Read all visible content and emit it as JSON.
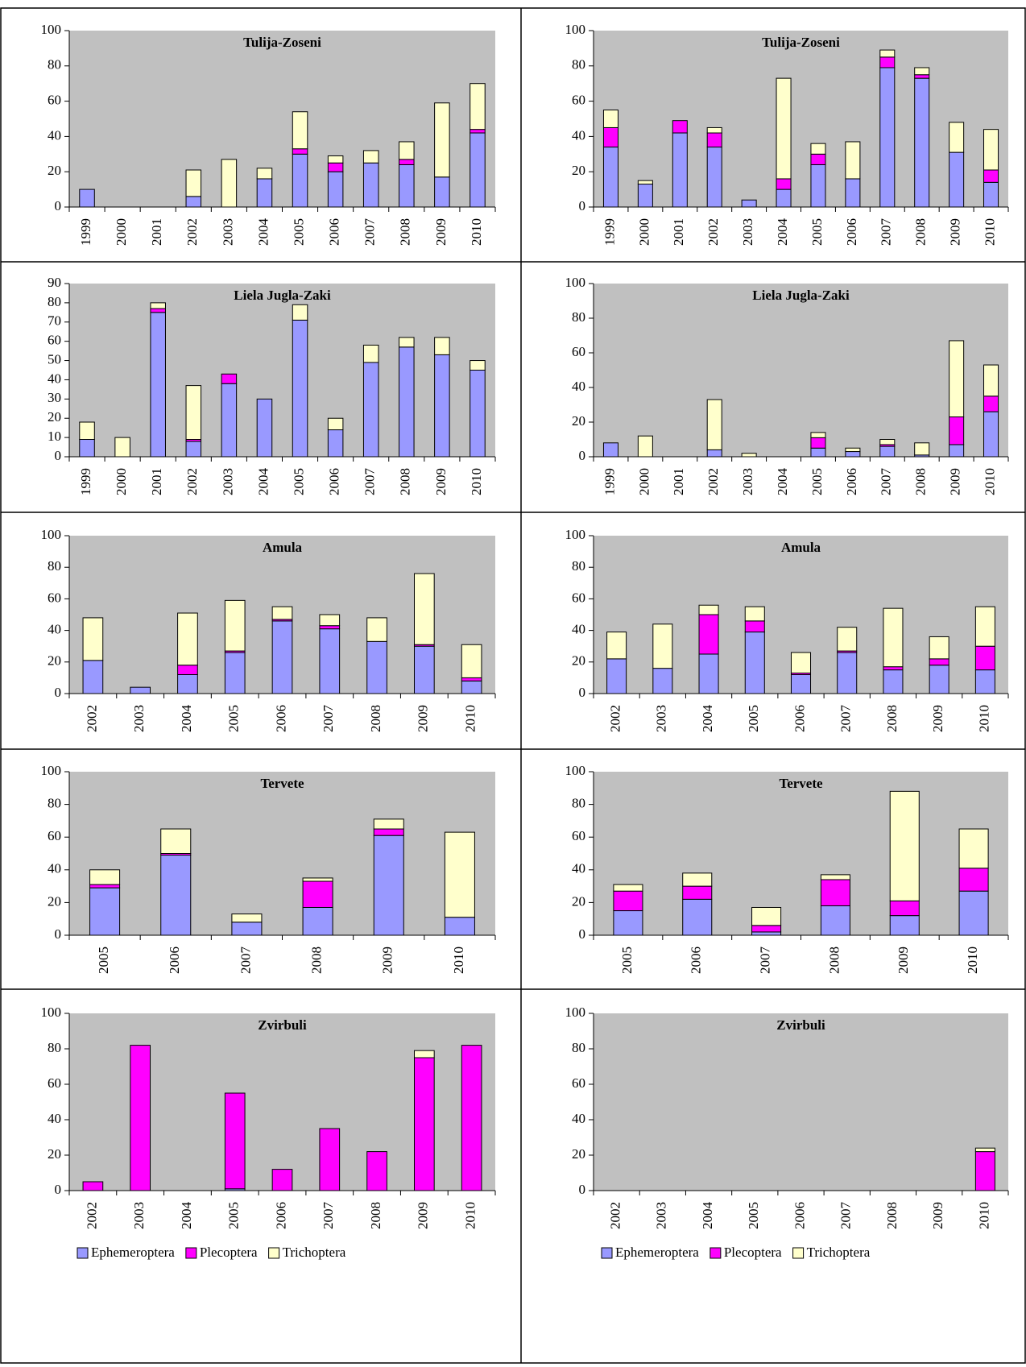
{
  "chart_data": [
    {
      "type": "stacked_bar",
      "title": "Tulija-Zoseni",
      "categories": [
        "1999",
        "2000",
        "2001",
        "2002",
        "2003",
        "2004",
        "2005",
        "2006",
        "2007",
        "2008",
        "2009",
        "2010"
      ],
      "ylim": [
        0,
        100
      ],
      "yticks": [
        0,
        20,
        40,
        60,
        80,
        100
      ],
      "series": [
        {
          "color": "#9999ff",
          "values": [
            10,
            0,
            0,
            6,
            0,
            16,
            30,
            20,
            25,
            24,
            17,
            42
          ]
        },
        {
          "color": "#ff00ff",
          "values": [
            0,
            0,
            0,
            0,
            0,
            0,
            3,
            5,
            0,
            3,
            0,
            2
          ]
        },
        {
          "color": "#ffffcc",
          "values": [
            0,
            0,
            0,
            15,
            27,
            6,
            21,
            4,
            7,
            10,
            42,
            26
          ]
        }
      ]
    },
    {
      "type": "stacked_bar",
      "title": "Tulija-Zoseni",
      "categories": [
        "1999",
        "2000",
        "2001",
        "2002",
        "2003",
        "2004",
        "2005",
        "2006",
        "2007",
        "2008",
        "2009",
        "2010"
      ],
      "ylim": [
        0,
        100
      ],
      "yticks": [
        0,
        20,
        40,
        60,
        80,
        100
      ],
      "series": [
        {
          "color": "#9999ff",
          "values": [
            34,
            13,
            42,
            34,
            4,
            10,
            24,
            16,
            79,
            73,
            31,
            14
          ]
        },
        {
          "color": "#ff00ff",
          "values": [
            11,
            0,
            7,
            8,
            0,
            6,
            6,
            0,
            6,
            2,
            0,
            7
          ]
        },
        {
          "color": "#ffffcc",
          "values": [
            10,
            2,
            0,
            3,
            0,
            57,
            6,
            21,
            4,
            4,
            17,
            23
          ]
        }
      ]
    },
    {
      "type": "stacked_bar",
      "title": "Liela Jugla-Zaki",
      "categories": [
        "1999",
        "2000",
        "2001",
        "2002",
        "2003",
        "2004",
        "2005",
        "2006",
        "2007",
        "2008",
        "2009",
        "2010"
      ],
      "ylim": [
        0,
        90
      ],
      "yticks": [
        0,
        10,
        20,
        30,
        40,
        50,
        60,
        70,
        80,
        90
      ],
      "series": [
        {
          "color": "#9999ff",
          "values": [
            9,
            0,
            75,
            8,
            38,
            30,
            71,
            14,
            49,
            57,
            53,
            45
          ]
        },
        {
          "color": "#ff00ff",
          "values": [
            0,
            0,
            2,
            1,
            5,
            0,
            0,
            0,
            0,
            0,
            0,
            0
          ]
        },
        {
          "color": "#ffffcc",
          "values": [
            9,
            10,
            3,
            28,
            0,
            0,
            8,
            6,
            9,
            5,
            9,
            5
          ]
        }
      ]
    },
    {
      "type": "stacked_bar",
      "title": "Liela Jugla-Zaki",
      "categories": [
        "1999",
        "2000",
        "2001",
        "2002",
        "2003",
        "2004",
        "2005",
        "2006",
        "2007",
        "2008",
        "2009",
        "2010"
      ],
      "ylim": [
        0,
        100
      ],
      "yticks": [
        0,
        20,
        40,
        60,
        80,
        100
      ],
      "series": [
        {
          "color": "#9999ff",
          "values": [
            8,
            0,
            0,
            4,
            0,
            0,
            5,
            3,
            6,
            1,
            7,
            26
          ]
        },
        {
          "color": "#ff00ff",
          "values": [
            0,
            0,
            0,
            0,
            0,
            0,
            6,
            0,
            1,
            0,
            16,
            9
          ]
        },
        {
          "color": "#ffffcc",
          "values": [
            0,
            12,
            0,
            29,
            2,
            0,
            3,
            2,
            3,
            7,
            44,
            18
          ]
        }
      ]
    },
    {
      "type": "stacked_bar",
      "title": "Amula",
      "categories": [
        "2002",
        "2003",
        "2004",
        "2005",
        "2006",
        "2007",
        "2008",
        "2009",
        "2010"
      ],
      "ylim": [
        0,
        100
      ],
      "yticks": [
        0,
        20,
        40,
        60,
        80,
        100
      ],
      "series": [
        {
          "color": "#9999ff",
          "values": [
            21,
            4,
            12,
            26,
            46,
            41,
            33,
            30,
            8
          ]
        },
        {
          "color": "#ff00ff",
          "values": [
            0,
            0,
            6,
            1,
            1,
            2,
            0,
            1,
            2
          ]
        },
        {
          "color": "#ffffcc",
          "values": [
            27,
            0,
            33,
            32,
            8,
            7,
            15,
            45,
            21
          ]
        }
      ]
    },
    {
      "type": "stacked_bar",
      "title": "Amula",
      "categories": [
        "2002",
        "2003",
        "2004",
        "2005",
        "2006",
        "2007",
        "2008",
        "2009",
        "2010"
      ],
      "ylim": [
        0,
        100
      ],
      "yticks": [
        0,
        20,
        40,
        60,
        80,
        100
      ],
      "series": [
        {
          "color": "#9999ff",
          "values": [
            22,
            16,
            25,
            39,
            12,
            26,
            15,
            18,
            15
          ]
        },
        {
          "color": "#ff00ff",
          "values": [
            0,
            0,
            25,
            7,
            1,
            1,
            2,
            4,
            15
          ]
        },
        {
          "color": "#ffffcc",
          "values": [
            17,
            28,
            6,
            9,
            13,
            15,
            37,
            14,
            25
          ]
        }
      ]
    },
    {
      "type": "stacked_bar",
      "title": "Tervete",
      "categories": [
        "2005",
        "2006",
        "2007",
        "2008",
        "2009",
        "2010"
      ],
      "ylim": [
        0,
        100
      ],
      "yticks": [
        0,
        20,
        40,
        60,
        80,
        100
      ],
      "series": [
        {
          "color": "#9999ff",
          "values": [
            29,
            49,
            8,
            17,
            61,
            11
          ]
        },
        {
          "color": "#ff00ff",
          "values": [
            2,
            1,
            0,
            16,
            4,
            0
          ]
        },
        {
          "color": "#ffffcc",
          "values": [
            9,
            15,
            5,
            2,
            6,
            52
          ]
        }
      ]
    },
    {
      "type": "stacked_bar",
      "title": "Tervete",
      "categories": [
        "2005",
        "2006",
        "2007",
        "2008",
        "2009",
        "2010"
      ],
      "ylim": [
        0,
        100
      ],
      "yticks": [
        0,
        20,
        40,
        60,
        80,
        100
      ],
      "series": [
        {
          "color": "#9999ff",
          "values": [
            15,
            22,
            2,
            18,
            12,
            27
          ]
        },
        {
          "color": "#ff00ff",
          "values": [
            12,
            8,
            4,
            16,
            9,
            14
          ]
        },
        {
          "color": "#ffffcc",
          "values": [
            4,
            8,
            11,
            3,
            67,
            24
          ]
        }
      ]
    },
    {
      "type": "stacked_bar",
      "title": "Zvirbuli",
      "categories": [
        "2002",
        "2003",
        "2004",
        "2005",
        "2006",
        "2007",
        "2008",
        "2009",
        "2010"
      ],
      "ylim": [
        0,
        100
      ],
      "yticks": [
        0,
        20,
        40,
        60,
        80,
        100
      ],
      "legend": "bottom",
      "series": [
        {
          "name": "Ephemeroptera",
          "color": "#9999ff",
          "values": [
            0,
            0,
            0,
            1,
            0,
            0,
            0,
            0,
            0
          ]
        },
        {
          "name": "Plecoptera",
          "color": "#ff00ff",
          "values": [
            5,
            82,
            0,
            54,
            12,
            35,
            22,
            75,
            82
          ]
        },
        {
          "name": "Trichoptera",
          "color": "#ffffcc",
          "values": [
            0,
            0,
            0,
            0,
            0,
            0,
            0,
            4,
            0
          ]
        }
      ]
    },
    {
      "type": "stacked_bar",
      "title": "Zvirbuli",
      "categories": [
        "2002",
        "2003",
        "2004",
        "2005",
        "2006",
        "2007",
        "2008",
        "2009",
        "2010"
      ],
      "ylim": [
        0,
        100
      ],
      "yticks": [
        0,
        20,
        40,
        60,
        80,
        100
      ],
      "legend": "bottom",
      "series": [
        {
          "name": "Ephemeroptera",
          "color": "#9999ff",
          "values": [
            0,
            0,
            0,
            0,
            0,
            0,
            0,
            0,
            0
          ]
        },
        {
          "name": "Plecoptera",
          "color": "#ff00ff",
          "values": [
            0,
            0,
            0,
            0,
            0,
            0,
            0,
            0,
            22
          ]
        },
        {
          "name": "Trichoptera",
          "color": "#ffffcc",
          "values": [
            0,
            0,
            0,
            0,
            0,
            0,
            0,
            0,
            2
          ]
        }
      ]
    }
  ]
}
